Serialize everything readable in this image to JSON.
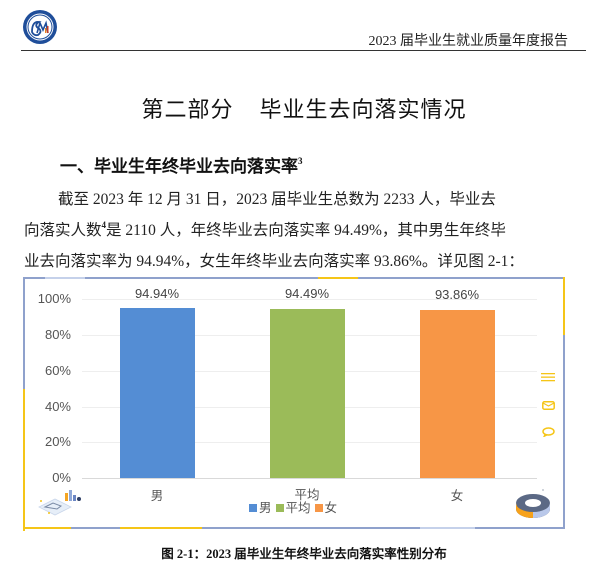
{
  "header": {
    "logo": "university-seal-logo",
    "title": "2023 届毕业生就业质量年度报告"
  },
  "part_title": {
    "part": "第二部分",
    "name": "毕业生去向落实情况"
  },
  "section": {
    "heading": "一、毕业生年终毕业去向落实率",
    "footnote": "3"
  },
  "paragraph": {
    "line1": "截至  2023 年 12 月 31 日，2023 届毕业生总数为 2233 人，毕业去",
    "line2_a": "向落实人数",
    "line2_footnote": "4",
    "line2_b": "是 2110 人，年终毕业去向落实率 94.49%，其中男生年终毕",
    "line3": "业去向落实率为 94.94%，女生年终毕业去向落实率 93.86%。详见图 2-1："
  },
  "chart_data": {
    "type": "bar",
    "title": "",
    "categories": [
      "男",
      "平均",
      "女"
    ],
    "values": [
      94.94,
      94.49,
      93.86
    ],
    "value_labels": [
      "94.94%",
      "94.49%",
      "93.86%"
    ],
    "colors": [
      "#548dd4",
      "#9bbb59",
      "#f79646"
    ],
    "xlabel": "",
    "ylabel": "",
    "ylim": [
      0,
      100
    ],
    "y_ticks": [
      "0%",
      "20%",
      "40%",
      "60%",
      "80%",
      "100%"
    ],
    "grid": true,
    "legend": {
      "position": "bottom",
      "entries": [
        "男",
        "平均",
        "女"
      ]
    }
  },
  "chart_decor": {
    "right_icons": [
      "menu-lines-icon",
      "envelope-icon",
      "speech-bubble-icon"
    ],
    "bottom_left": "isometric-chart-illustration",
    "bottom_right": "3d-donut-chart-icon"
  },
  "caption": "图 2-1：2023 届毕业生年终毕业去向落实率性别分布"
}
